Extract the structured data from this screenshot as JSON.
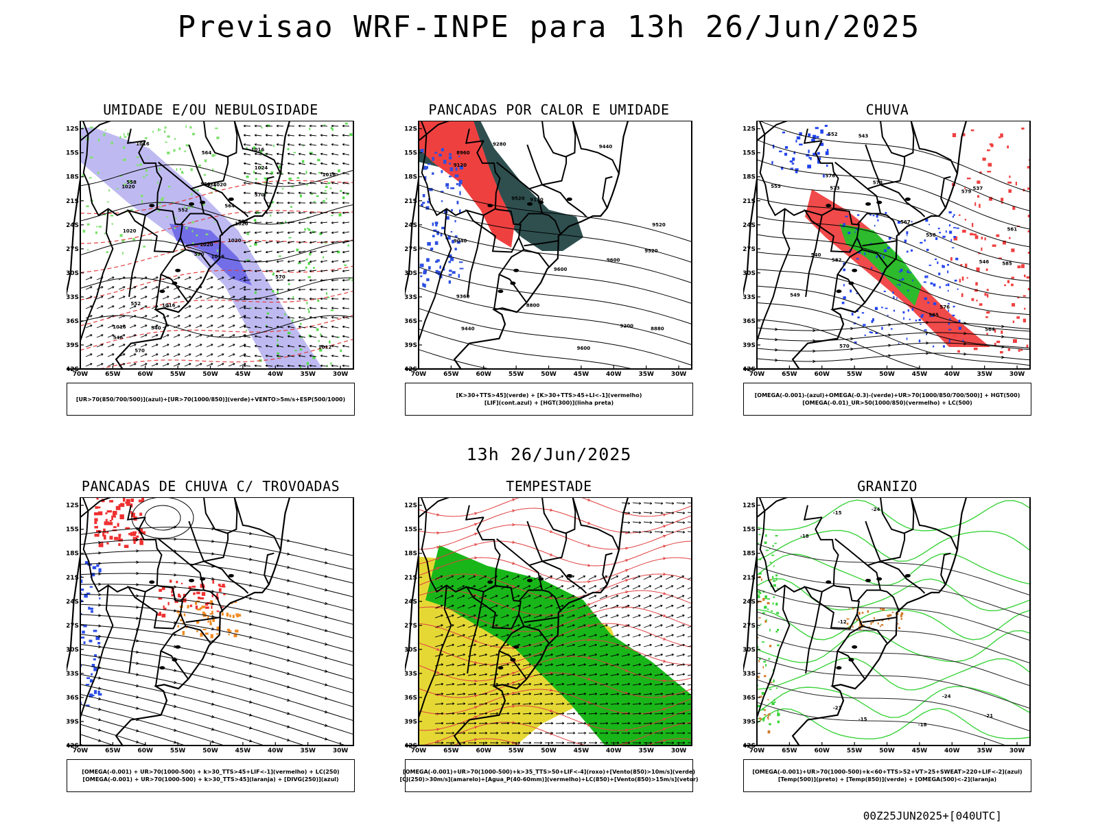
{
  "header": {
    "title": "Previsao WRF-INPE  para 13h 26/Jun/2025"
  },
  "middle": {
    "subtitle": "13h 26/Jun/2025"
  },
  "footer": {
    "run": "00Z25JUN2025+[040UTC]"
  },
  "axes": {
    "lat_ticks": [
      "12S",
      "15S",
      "18S",
      "21S",
      "24S",
      "27S",
      "30S",
      "33S",
      "36S",
      "39S",
      "42S"
    ],
    "lon_ticks": [
      "70W",
      "65W",
      "60W",
      "55W",
      "50W",
      "45W",
      "40W",
      "35W",
      "30W"
    ]
  },
  "panels": [
    {
      "title": "UMIDADE E/OU NEBULOSIDADE",
      "legend": [
        "[UR>70(850/700/500)](azul)+[UR>70(1000/850)](verde)+VENTO>5m/s+ESP(500/1000)"
      ],
      "labels": [
        "1016",
        "1020",
        "1020",
        "1016",
        "1020",
        "1016",
        "1016",
        "1020",
        "1024",
        "1020",
        "1016",
        "1012",
        "1020",
        "1016",
        "570",
        "570",
        "570",
        "558",
        "564",
        "552",
        "552",
        "546",
        "540",
        "534",
        "552",
        "570",
        "558",
        "564"
      ]
    },
    {
      "title": "PANCADAS POR CALOR E UMIDADE",
      "legend": [
        "[K>30+TTS>45](verde) + [K>30+TTS>45+LI<-1](vermelho)",
        "[LIF](cont.azul) + [HGT(300)](linha preta)"
      ],
      "labels": [
        "9600",
        "9520",
        "9440",
        "9280",
        "9120",
        "9200",
        "9360",
        "9440",
        "9520",
        "9600",
        "9120",
        "9040",
        "8960",
        "8880",
        "8800",
        "9520",
        "9600"
      ]
    },
    {
      "title": "CHUVA",
      "legend": [
        "[OMEGA(-0.001)-(azul)+OMEGA(-0.3)-(verde)+UR>70(1000/850/700/500)] + HGT(500)",
        "[OMEGA(-0.01)_UR>50(1000/850)(vermelho) + LC(500)"
      ],
      "labels": [
        "585",
        "585",
        "579",
        "573",
        "576",
        "570",
        "567",
        "564",
        "561",
        "558",
        "555",
        "552",
        "549",
        "546",
        "543",
        "540",
        "537",
        "576",
        "573",
        "582"
      ]
    },
    {
      "title": "PANCADAS DE CHUVA C/ TROVOADAS",
      "legend": [
        "[OMEGA(-0.001) + UR>70(1000-500) + k>30_TTS>45+LIF<-1](vermelho) + LC(250)",
        "[OMEGA(-0.001) + UR>70(1000-500) + k>30_TTS>45](laranja) + [DIVG(250)](azul)"
      ],
      "labels": []
    },
    {
      "title": "TEMPESTADE",
      "legend": [
        "[OMEGA(-0.001)+UR>70(1000-500)+k>35_TTS>50+LIF<-4](roxo)+[Vento(850)>10m/s](verde)",
        "[CJ(250)>30m/s](amarelo)+[Agua_P(40-60mm)](vermelho)+LC(850)+[Vento(850)>15m/s](vetor)"
      ],
      "labels": []
    },
    {
      "title": "GRANIZO",
      "legend": [
        "[OMEGA(-0.001)+UR>70(1000-500)+k<60+TTS>52+VT>25+SWEAT>220+LIF<-2](azul)",
        "[Temp(500)](preto) + [Temp(850)](verde) + [OMEGA(500)<-2](laranja)"
      ],
      "labels": [
        "-15",
        "-18",
        "-21",
        "-24",
        "-15",
        "-18",
        "-12",
        "-21",
        "-24"
      ]
    }
  ]
}
